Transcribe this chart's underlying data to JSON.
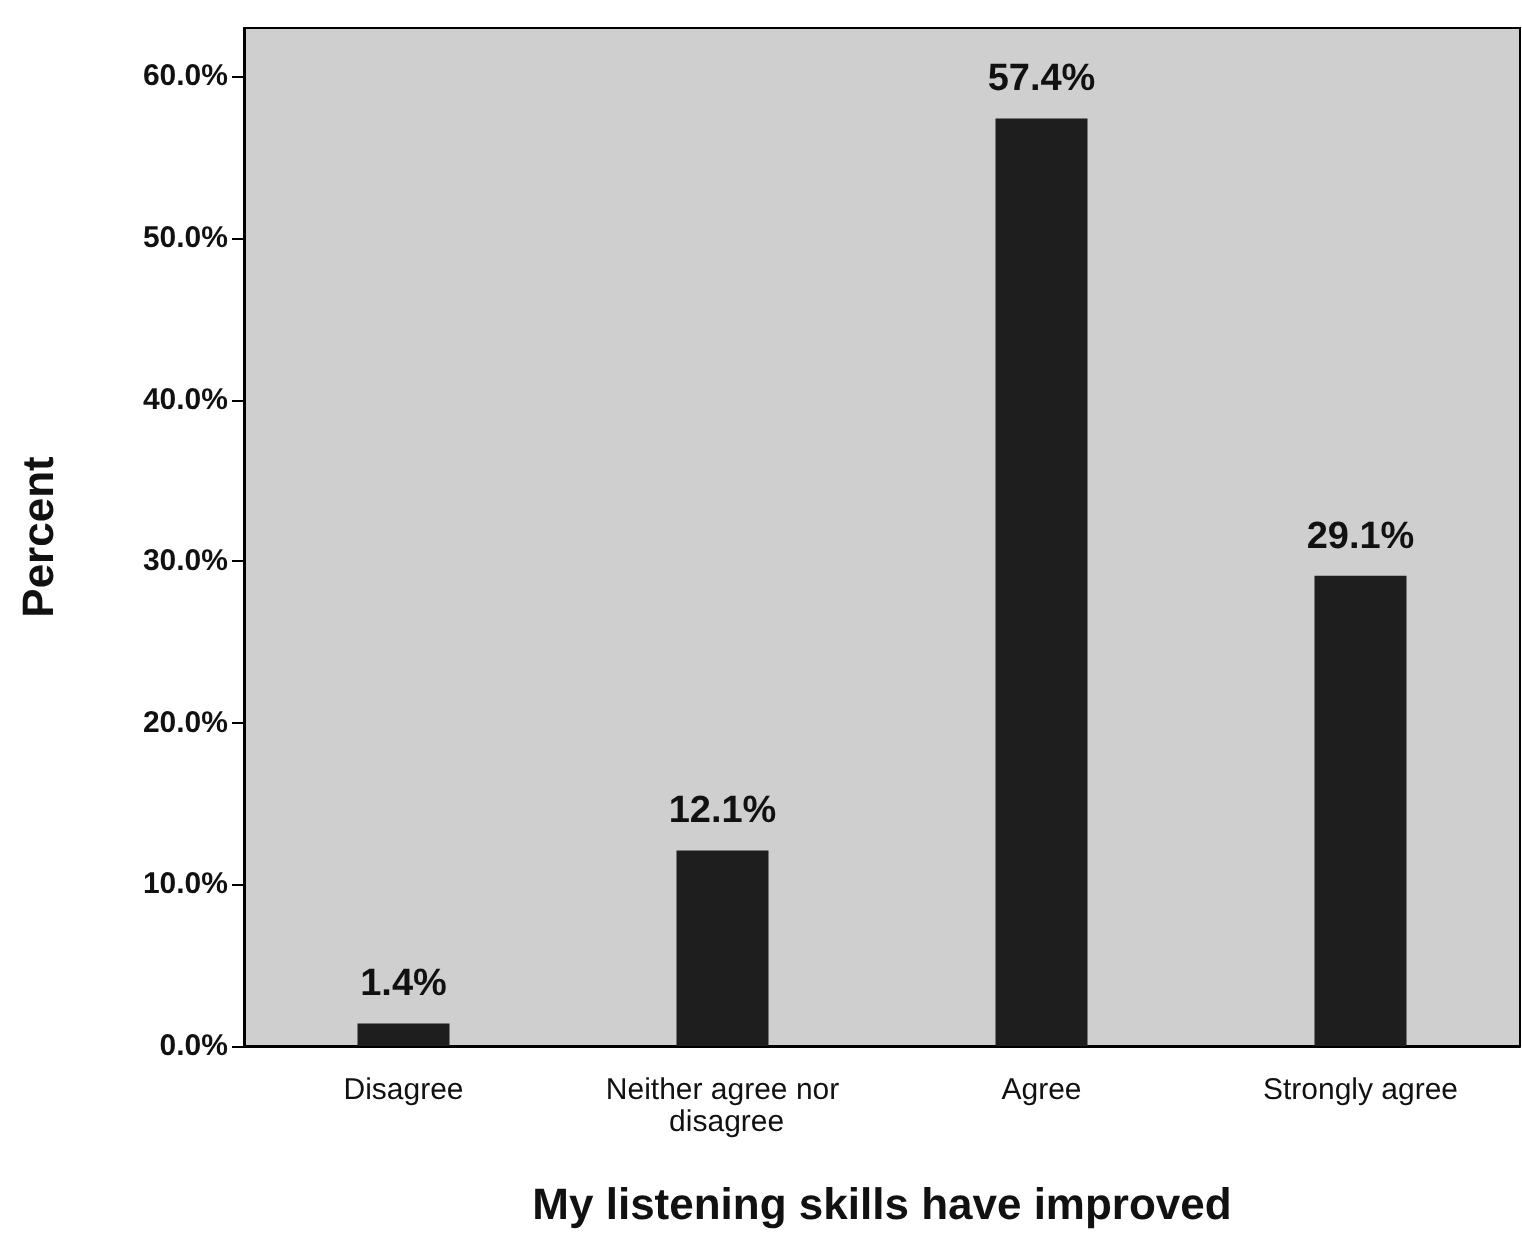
{
  "chart_data": {
    "type": "bar",
    "xlabel": "My listening skills have improved",
    "ylabel": "Percent",
    "categories": [
      "Disagree",
      "Neither agree nor disagree",
      "Agree",
      "Strongly agree"
    ],
    "values": [
      1.4,
      12.1,
      57.4,
      29.1
    ],
    "value_labels": [
      "1.4%",
      "12.1%",
      "57.4%",
      "29.1%"
    ],
    "color": "#1e1e1e",
    "ylim": [
      0,
      63
    ],
    "yticks": [
      {
        "value": 0,
        "label": "0.0%"
      },
      {
        "value": 10,
        "label": "10.0%"
      },
      {
        "value": 20,
        "label": "20.0%"
      },
      {
        "value": 30,
        "label": "30.0%"
      },
      {
        "value": 40,
        "label": "40.0%"
      },
      {
        "value": 50,
        "label": "50.0%"
      },
      {
        "value": 60,
        "label": "60.0%"
      }
    ]
  }
}
